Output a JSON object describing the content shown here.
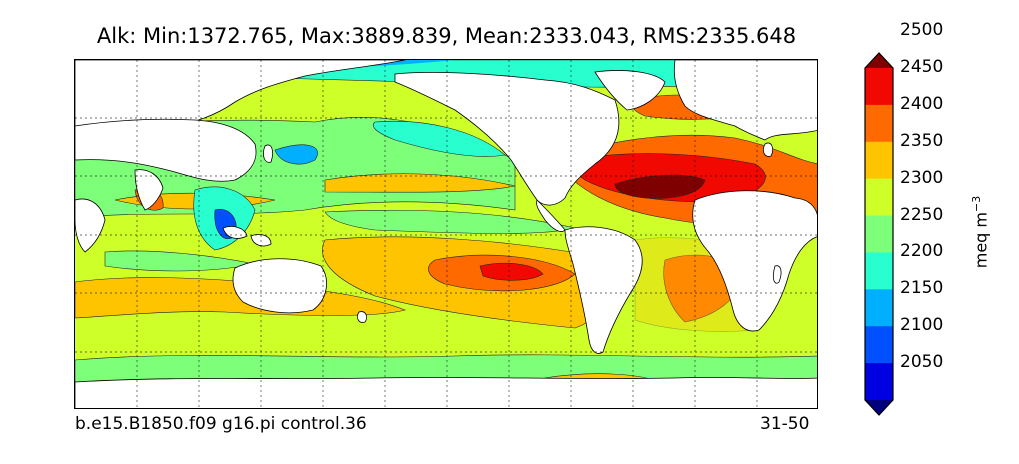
{
  "title": "Alk: Min:1372.765, Max:3889.839, Mean:2333.043, RMS:2335.648",
  "footer": {
    "case_name": "b.e15.B1850.f09 g16.pi control.36",
    "years": "31-50"
  },
  "colorbar": {
    "label": "meq m",
    "label_exponent": "−3",
    "ticks": [
      "2050",
      "2100",
      "2150",
      "2200",
      "2250",
      "2300",
      "2350",
      "2400",
      "2450",
      "2500"
    ],
    "levels": [
      {
        "range": "<2050",
        "color": "#00007f"
      },
      {
        "range": "2050-2100",
        "color": "#0000e0"
      },
      {
        "range": "2100-2150",
        "color": "#0050ff"
      },
      {
        "range": "2150-2200",
        "color": "#00b0ff"
      },
      {
        "range": "2200-2250",
        "color": "#29ffce"
      },
      {
        "range": "2250-2300",
        "color": "#7dff7a"
      },
      {
        "range": "2300-2350",
        "color": "#ceff29"
      },
      {
        "range": "2350-2400",
        "color": "#ffc400"
      },
      {
        "range": "2400-2450",
        "color": "#ff6a00"
      },
      {
        "range": "2450-2500",
        "color": "#f10800"
      },
      {
        "range": ">2500",
        "color": "#7f0000"
      }
    ]
  },
  "map": {
    "projection": "cylindrical",
    "grid": "dashed",
    "land_color": "#ffffff"
  }
}
